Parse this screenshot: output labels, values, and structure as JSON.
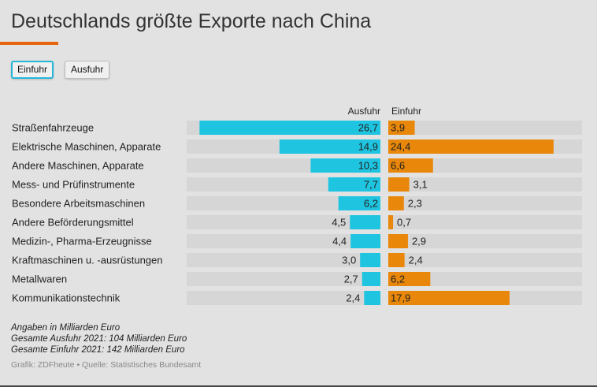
{
  "title": "Deutschlands größte Exporte nach China",
  "toggles": {
    "einfuhr_label": "Einfuhr",
    "ausfuhr_label": "Ausfuhr",
    "active": "Einfuhr"
  },
  "colors": {
    "ausfuhr": "#1ec4e0",
    "einfuhr": "#e8870a",
    "accent": "#e8650f",
    "track": "#d6d6d6"
  },
  "chart_data": {
    "type": "bar",
    "title": "Deutschlands größte Exporte nach China",
    "unit": "Milliarden Euro",
    "categories": [
      "Straßenfahrzeuge",
      "Elektrische Maschinen, Apparate",
      "Andere Maschinen, Apparate",
      "Mess- und Prüfinstrumente",
      "Besondere Arbeitsmaschinen",
      "Andere Beförderungsmittel",
      "Medizin-, Pharma-Erzeugnisse",
      "Kraftmaschinen u. -ausrüstungen",
      "Metallwaren",
      "Kommunikationstechnik"
    ],
    "series": [
      {
        "name": "Ausfuhr",
        "values": [
          26.7,
          14.9,
          10.3,
          7.7,
          6.2,
          4.5,
          4.4,
          3.0,
          2.7,
          2.4
        ],
        "labels": [
          "26,7",
          "14,9",
          "10,3",
          "7,7",
          "6,2",
          "4,5",
          "4,4",
          "3,0",
          "2,7",
          "2,4"
        ]
      },
      {
        "name": "Einfuhr",
        "values": [
          3.9,
          24.4,
          6.6,
          3.1,
          2.3,
          0.7,
          2.9,
          2.4,
          6.2,
          17.9
        ],
        "labels": [
          "3,9",
          "24,4",
          "6,6",
          "3,1",
          "2,3",
          "0,7",
          "2,9",
          "2,4",
          "6,2",
          "17,9"
        ]
      }
    ],
    "xlim": [
      0,
      28.6
    ]
  },
  "notes": {
    "line1": "Angaben in Milliarden Euro",
    "line2": "Gesamte Ausfuhr 2021: 104 Milliarden Euro",
    "line3": "Gesamte Einfuhr 2021: 142 Milliarden Euro"
  },
  "source": "Grafik: ZDFheute • Quelle: Statistisches Bundesamt"
}
